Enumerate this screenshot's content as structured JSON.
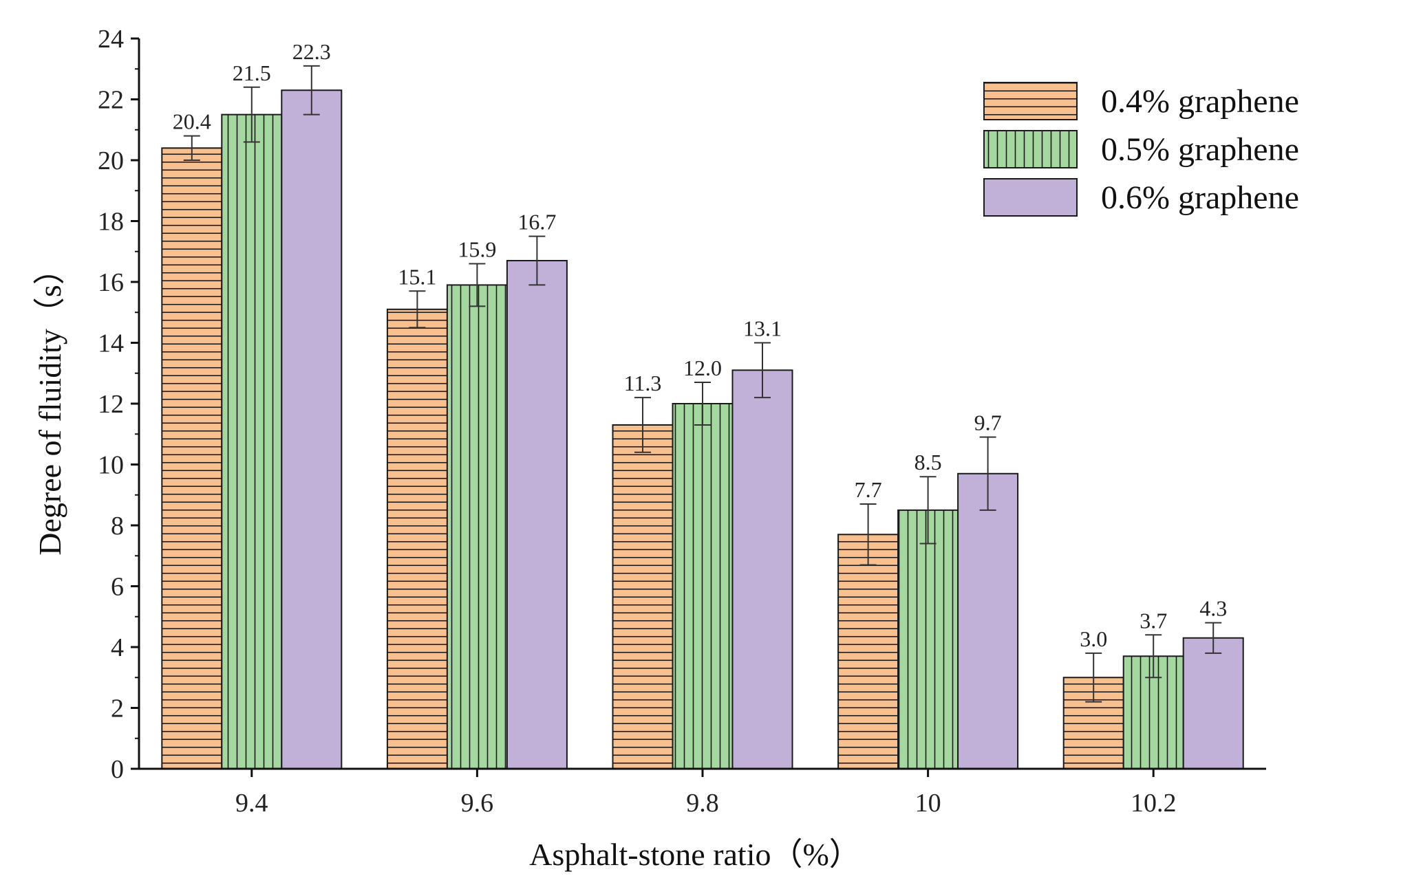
{
  "chart_data": {
    "type": "bar",
    "title": "",
    "xlabel": "Asphalt-stone ratio（%）",
    "ylabel": "Degree of fluidity（s）",
    "ylim": [
      0,
      24
    ],
    "yticks": [
      0,
      2,
      4,
      6,
      8,
      10,
      12,
      14,
      16,
      18,
      20,
      22,
      24
    ],
    "categories": [
      "9.4",
      "9.6",
      "9.8",
      "10",
      "10.2"
    ],
    "legend_position": "top-right",
    "grid": false,
    "series": [
      {
        "name": "0.4% graphene",
        "color": "#f9c08f",
        "pattern": "horizontal-lines",
        "values": [
          20.4,
          15.1,
          11.3,
          7.7,
          3.0
        ],
        "labels": [
          "20.4",
          "15.1",
          "11.3",
          "7.7",
          "3.0"
        ],
        "errors": [
          0.4,
          0.6,
          0.9,
          1.0,
          0.8
        ]
      },
      {
        "name": "0.5% graphene",
        "color": "#a5d8a0",
        "pattern": "vertical-lines",
        "values": [
          21.5,
          15.9,
          12.0,
          8.5,
          3.7
        ],
        "labels": [
          "21.5",
          "15.9",
          "12.0",
          "8.5",
          "3.7"
        ],
        "errors": [
          0.9,
          0.7,
          0.7,
          1.1,
          0.7
        ]
      },
      {
        "name": "0.6% graphene",
        "color": "#c1b1d8",
        "pattern": "solid",
        "values": [
          22.3,
          16.7,
          13.1,
          9.7,
          4.3
        ],
        "labels": [
          "22.3",
          "16.7",
          "13.1",
          "9.7",
          "4.3"
        ],
        "errors": [
          0.8,
          0.8,
          0.9,
          1.2,
          0.5
        ]
      }
    ]
  }
}
